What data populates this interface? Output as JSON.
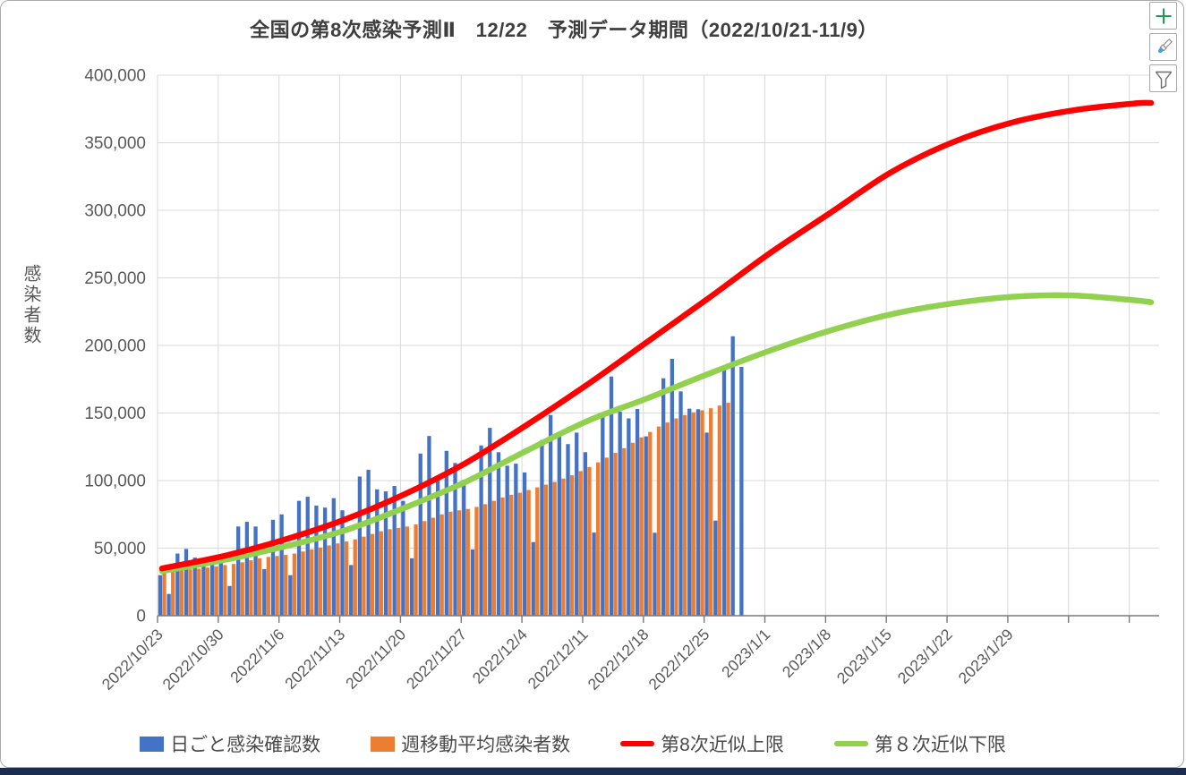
{
  "title": "全国の第8次感染予測Ⅱ　12/22　予測データ期間（2022/10/21-11/9）",
  "y_axis": {
    "title": "感染者数",
    "tick_labels": [
      "0",
      "50,000",
      "100,000",
      "150,000",
      "200,000",
      "250,000",
      "300,000",
      "350,000",
      "400,000"
    ],
    "min": 0,
    "max": 400000,
    "step": 50000
  },
  "x_axis": {
    "labels": [
      "2022/10/23",
      "2022/10/30",
      "2022/11/6",
      "2022/11/13",
      "2022/11/20",
      "2022/11/27",
      "2022/12/4",
      "2022/12/11",
      "2022/12/18",
      "2022/12/25",
      "2023/1/1",
      "2023/1/8",
      "2023/1/15",
      "2023/1/22",
      "2023/1/29"
    ]
  },
  "legend": [
    {
      "label": "日ごと感染確認数",
      "color": "#4472c4",
      "marker": "rect"
    },
    {
      "label": "週移動平均感染者数",
      "color": "#ed7d31",
      "marker": "rect"
    },
    {
      "label": "第8次近似上限",
      "color": "#ff0000",
      "marker": "line"
    },
    {
      "label": "第８次近似下限",
      "color": "#92d050",
      "marker": "line"
    }
  ],
  "colors": {
    "daily_bar": "#4472c4",
    "avg_bar": "#ed7d31",
    "upper_line": "#ff0000",
    "lower_line": "#92d050",
    "gridline": "#d9d9d9",
    "axis": "#7a7a7a",
    "tick_text": "#595959",
    "bottom_strip": "#1b2d4f"
  },
  "toolbar": {
    "buttons": [
      {
        "name": "chart-elements",
        "icon": "plus-icon"
      },
      {
        "name": "chart-styles",
        "icon": "brush-icon"
      },
      {
        "name": "chart-filters",
        "icon": "funnel-icon"
      }
    ]
  },
  "chart_data": {
    "type": "bar+line combo",
    "title": "全国の第8次感染予測Ⅱ　12/22　予測データ期間（2022/10/21-11/9）",
    "xlabel": "",
    "ylabel": "感染者数",
    "ylim": [
      0,
      400000
    ],
    "grid": true,
    "legend_position": "bottom",
    "x_start_date": "2022/10/23",
    "x_end_date": "2023/2/14",
    "series": [
      {
        "name": "日ごと感染確認数",
        "type": "bar",
        "start_day": 0,
        "values": [
          30000,
          16100,
          46000,
          49400,
          43000,
          41000,
          44000,
          40000,
          22000,
          66000,
          69500,
          66000,
          34500,
          71000,
          75000,
          30000,
          85000,
          88000,
          81500,
          80000,
          87000,
          78000,
          37500,
          103000,
          108000,
          93500,
          92000,
          96000,
          85000,
          42500,
          120000,
          133000,
          103500,
          122000,
          113000,
          100500,
          49000,
          126000,
          139000,
          121000,
          111000,
          112500,
          106000,
          54500,
          130000,
          148500,
          133000,
          127000,
          135500,
          121000,
          61500,
          148000,
          177000,
          151000,
          146000,
          153000,
          132700,
          61400,
          175700,
          190100,
          166000,
          153200,
          152800,
          135500,
          70400,
          184600,
          206800,
          184100
        ]
      },
      {
        "name": "週移動平均感染者数",
        "type": "bar",
        "start_day": 0,
        "values": [
          34700,
          34600,
          34400,
          34300,
          34800,
          35600,
          36500,
          37500,
          38300,
          39500,
          41000,
          42500,
          43500,
          44200,
          45000,
          46000,
          47500,
          49000,
          50500,
          52000,
          53500,
          55000,
          56500,
          58500,
          60500,
          62500,
          64000,
          65000,
          66000,
          67500,
          70000,
          72500,
          75000,
          77000,
          78000,
          79000,
          80500,
          82500,
          85000,
          87500,
          89500,
          91000,
          93000,
          95000,
          97000,
          99000,
          101500,
          104000,
          107000,
          110000,
          113500,
          117000,
          120500,
          124000,
          128000,
          132000,
          136000,
          140000,
          143000,
          146000,
          148500,
          150500,
          152000,
          153500,
          155500,
          157600
        ]
      },
      {
        "name": "第8次近似上限",
        "type": "line",
        "anchor_days": [
          0,
          7,
          14,
          21,
          28,
          35,
          42,
          49,
          56,
          63,
          70,
          77,
          84,
          91,
          98,
          105,
          112,
          114
        ],
        "values": [
          35000,
          44000,
          56000,
          71000,
          90000,
          113000,
          141000,
          171000,
          203000,
          235000,
          268000,
          298000,
          328000,
          350000,
          365000,
          374000,
          379000,
          379500
        ]
      },
      {
        "name": "第８次近似下限",
        "type": "line",
        "anchor_days": [
          0,
          7,
          14,
          21,
          28,
          35,
          42,
          49,
          56,
          63,
          70,
          77,
          84,
          91,
          98,
          105,
          112,
          114
        ],
        "values": [
          33000,
          41000,
          51000,
          63000,
          80000,
          99000,
          122000,
          144000,
          161000,
          179000,
          196000,
          211000,
          223000,
          231000,
          236000,
          237000,
          233500,
          232000
        ]
      }
    ]
  }
}
